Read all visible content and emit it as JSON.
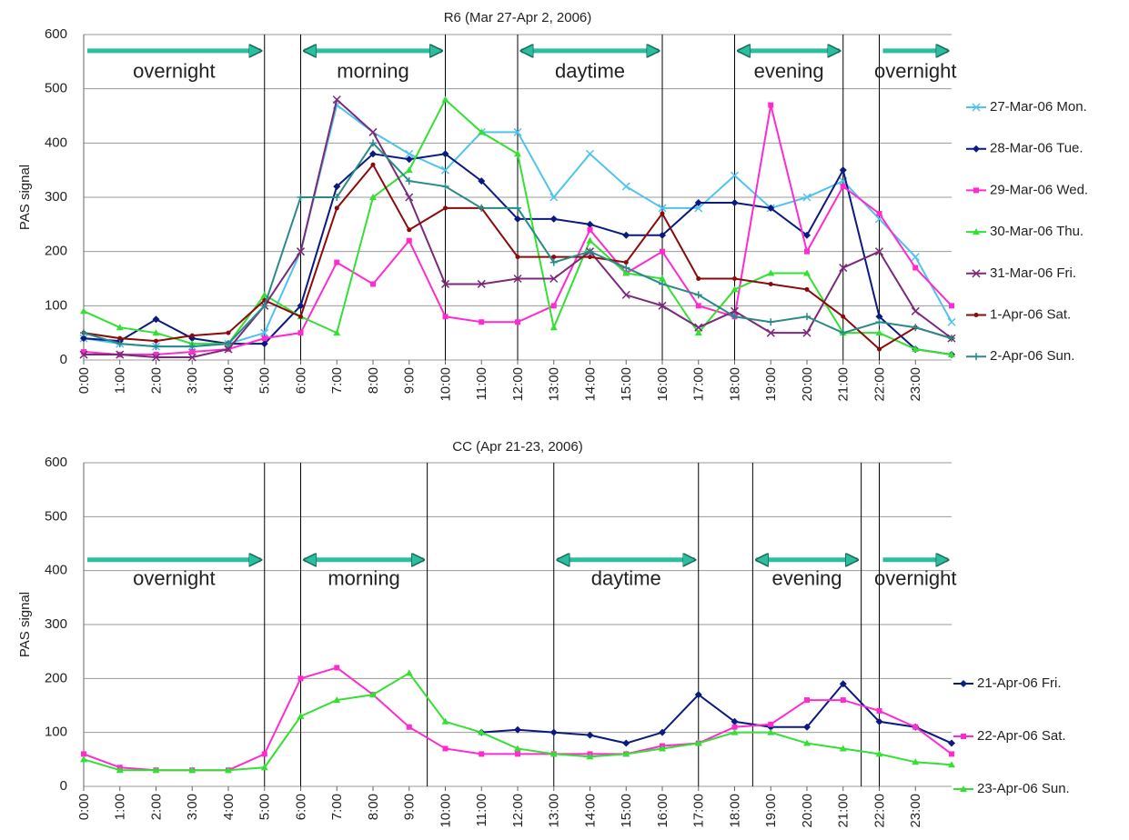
{
  "chart_data": [
    {
      "type": "line",
      "title": "R6 (Mar 27-Apr 2, 2006)",
      "y_label": "PAS signal",
      "x": [
        0,
        1,
        2,
        3,
        4,
        5,
        6,
        7,
        8,
        9,
        10,
        11,
        12,
        13,
        14,
        15,
        16,
        17,
        18,
        19,
        20,
        21,
        22,
        23,
        24
      ],
      "xlim": [
        0,
        24
      ],
      "ylim": [
        0,
        600
      ],
      "yticks": [
        0,
        100,
        200,
        300,
        400,
        500,
        600
      ],
      "grid": true,
      "xticks": [
        {
          "value": 0,
          "label": "0:00"
        },
        {
          "value": 1,
          "label": "1:00"
        },
        {
          "value": 2,
          "label": "2:00"
        },
        {
          "value": 3,
          "label": "3:00"
        },
        {
          "value": 4,
          "label": "4:00"
        },
        {
          "value": 5,
          "label": "5:00"
        },
        {
          "value": 6,
          "label": "6:00"
        },
        {
          "value": 7,
          "label": "7:00"
        },
        {
          "value": 8,
          "label": "8:00"
        },
        {
          "value": 9,
          "label": "9:00"
        },
        {
          "value": 10,
          "label": "10:00"
        },
        {
          "value": 11,
          "label": "11:00"
        },
        {
          "value": 12,
          "label": "12:00"
        },
        {
          "value": 13,
          "label": "13:00"
        },
        {
          "value": 14,
          "label": "14:00"
        },
        {
          "value": 15,
          "label": "15:00"
        },
        {
          "value": 16,
          "label": "16:00"
        },
        {
          "value": 17,
          "label": "17:00"
        },
        {
          "value": 18,
          "label": "18:00"
        },
        {
          "value": 19,
          "label": "19:00"
        },
        {
          "value": 20,
          "label": "20:00"
        },
        {
          "value": 21,
          "label": "21:00"
        },
        {
          "value": 22,
          "label": "22:00"
        },
        {
          "value": 23,
          "label": "23:00"
        }
      ],
      "period_bounds": [
        5,
        6,
        10,
        12,
        16,
        18,
        21,
        22
      ],
      "annotations": [
        {
          "text": "overnight",
          "x": [
            0,
            5
          ],
          "arrow": "right"
        },
        {
          "text": "morning",
          "x": [
            6,
            10
          ],
          "arrow": "both"
        },
        {
          "text": "daytime",
          "x": [
            12,
            16
          ],
          "arrow": "both"
        },
        {
          "text": "evening",
          "x": [
            18,
            21
          ],
          "arrow": "both"
        },
        {
          "text": "overnight",
          "x": [
            22,
            24
          ],
          "arrow": "right"
        }
      ],
      "series": [
        {
          "name": "27-Mar-06 Mon.",
          "color": "#4fc3f0",
          "marker": "x",
          "values": [
            40,
            30,
            25,
            25,
            30,
            50,
            200,
            470,
            420,
            380,
            350,
            420,
            420,
            300,
            380,
            320,
            280,
            280,
            340,
            280,
            300,
            330,
            260,
            190,
            70
          ]
        },
        {
          "name": "28-Mar-06 Tue.",
          "color": "#0b1a80",
          "marker": "diamond",
          "values": [
            40,
            35,
            75,
            40,
            30,
            30,
            100,
            320,
            380,
            370,
            380,
            330,
            260,
            260,
            250,
            230,
            230,
            290,
            290,
            280,
            230,
            350,
            80,
            20,
            10
          ]
        },
        {
          "name": "29-Mar-06 Wed.",
          "color": "#ff2ad0",
          "marker": "square",
          "values": [
            15,
            10,
            10,
            15,
            20,
            40,
            50,
            180,
            140,
            220,
            80,
            70,
            70,
            100,
            240,
            160,
            200,
            100,
            80,
            470,
            200,
            320,
            270,
            170,
            100
          ]
        },
        {
          "name": "30-Mar-06 Thu.",
          "color": "#33e033",
          "marker": "triangle",
          "values": [
            90,
            60,
            50,
            30,
            30,
            120,
            80,
            50,
            300,
            350,
            480,
            420,
            380,
            60,
            220,
            160,
            150,
            50,
            130,
            160,
            160,
            50,
            50,
            20,
            10
          ]
        },
        {
          "name": "31-Mar-06 Fri.",
          "color": "#7b2a7b",
          "marker": "x",
          "values": [
            10,
            10,
            5,
            5,
            20,
            100,
            200,
            480,
            420,
            300,
            140,
            140,
            150,
            150,
            200,
            120,
            100,
            60,
            90,
            50,
            50,
            170,
            200,
            90,
            40
          ]
        },
        {
          "name": "1-Apr-06 Sat.",
          "color": "#8b0a0a",
          "marker": "dot",
          "values": [
            50,
            40,
            35,
            45,
            50,
            110,
            80,
            280,
            360,
            240,
            280,
            280,
            190,
            190,
            190,
            180,
            270,
            150,
            150,
            140,
            130,
            80,
            20,
            60,
            40
          ]
        },
        {
          "name": "2-Apr-06 Sun.",
          "color": "#2a8a8a",
          "marker": "plus",
          "values": [
            50,
            30,
            25,
            25,
            30,
            100,
            300,
            300,
            400,
            330,
            320,
            280,
            280,
            180,
            200,
            170,
            140,
            120,
            80,
            70,
            80,
            50,
            70,
            60,
            40
          ]
        }
      ]
    },
    {
      "type": "line",
      "title": "CC  (Apr 21-23, 2006)",
      "y_label": "PAS signal",
      "x": [
        0,
        1,
        2,
        3,
        4,
        5,
        6,
        7,
        8,
        9,
        10,
        11,
        12,
        13,
        14,
        15,
        16,
        17,
        18,
        19,
        20,
        21,
        22,
        23,
        24
      ],
      "xlim": [
        0,
        24
      ],
      "ylim": [
        0,
        600
      ],
      "yticks": [
        0,
        100,
        200,
        300,
        400,
        500,
        600
      ],
      "grid": true,
      "xticks": [
        {
          "value": 0,
          "label": "0:00"
        },
        {
          "value": 1,
          "label": "1:00"
        },
        {
          "value": 2,
          "label": "2:00"
        },
        {
          "value": 3,
          "label": "3:00"
        },
        {
          "value": 4,
          "label": "4:00"
        },
        {
          "value": 5,
          "label": "5:00"
        },
        {
          "value": 6,
          "label": "6:00"
        },
        {
          "value": 7,
          "label": "7:00"
        },
        {
          "value": 8,
          "label": "8:00"
        },
        {
          "value": 9,
          "label": "9:00"
        },
        {
          "value": 10,
          "label": "10:00"
        },
        {
          "value": 11,
          "label": "11:00"
        },
        {
          "value": 12,
          "label": "12:00"
        },
        {
          "value": 13,
          "label": "13:00"
        },
        {
          "value": 14,
          "label": "14:00"
        },
        {
          "value": 15,
          "label": "15:00"
        },
        {
          "value": 16,
          "label": "16:00"
        },
        {
          "value": 17,
          "label": "17:00"
        },
        {
          "value": 18,
          "label": "18:00"
        },
        {
          "value": 19,
          "label": "19:00"
        },
        {
          "value": 20,
          "label": "20:00"
        },
        {
          "value": 21,
          "label": "21:00"
        },
        {
          "value": 22,
          "label": "22:00"
        },
        {
          "value": 23,
          "label": "23:00"
        }
      ],
      "period_bounds": [
        5,
        6,
        9.5,
        13,
        17,
        18.5,
        21.5,
        22
      ],
      "annotations": [
        {
          "text": "overnight",
          "x": [
            0,
            5
          ],
          "arrow": "right"
        },
        {
          "text": "morning",
          "x": [
            6,
            9.5
          ],
          "arrow": "both"
        },
        {
          "text": "daytime",
          "x": [
            13,
            17
          ],
          "arrow": "both"
        },
        {
          "text": "evening",
          "x": [
            18.5,
            21.5
          ],
          "arrow": "both"
        },
        {
          "text": "overnight",
          "x": [
            22,
            24
          ],
          "arrow": "right"
        }
      ],
      "series": [
        {
          "name": "21-Apr-06 Fri.",
          "color": "#0b1a80",
          "marker": "diamond",
          "values": [
            null,
            null,
            null,
            null,
            null,
            null,
            null,
            null,
            null,
            null,
            null,
            100,
            105,
            100,
            95,
            80,
            100,
            170,
            120,
            110,
            110,
            190,
            120,
            110,
            80
          ]
        },
        {
          "name": "22-Apr-06 Sat.",
          "color": "#ff2ad0",
          "marker": "square",
          "values": [
            60,
            35,
            30,
            30,
            30,
            60,
            200,
            220,
            170,
            110,
            70,
            60,
            60,
            60,
            60,
            60,
            75,
            80,
            110,
            115,
            160,
            160,
            140,
            110,
            60
          ]
        },
        {
          "name": "23-Apr-06 Sun.",
          "color": "#33e033",
          "marker": "triangle",
          "values": [
            50,
            30,
            30,
            30,
            30,
            35,
            130,
            160,
            170,
            210,
            120,
            100,
            70,
            60,
            55,
            60,
            70,
            80,
            100,
            100,
            80,
            70,
            60,
            45,
            40
          ]
        }
      ]
    }
  ]
}
